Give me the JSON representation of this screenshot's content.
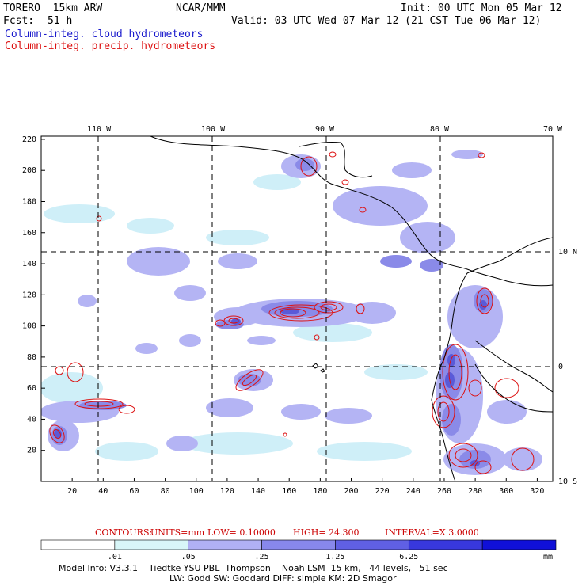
{
  "header": {
    "model": "TORERO  15km ARW",
    "center": "NCAR/MMM",
    "init": "Init: 00 UTC Mon 05 Mar 12",
    "fcst_label": "Fcst:",
    "fcst_value": "51 h",
    "valid": "Valid: 03 UTC Wed 07 Mar 12 (21 CST Tue 06 Mar 12)",
    "field_cloud": "Column-integ. cloud hydrometeors",
    "field_precip": "Column-integ. precip. hydrometeors"
  },
  "map": {
    "lon_labels": [
      "110 W",
      "100 W",
      "90 W",
      "80 W",
      "70 W"
    ],
    "lat_labels": [
      "10 N",
      "0",
      "10 S"
    ],
    "x_ticks": [
      "20",
      "40",
      "60",
      "80",
      "100",
      "120",
      "140",
      "160",
      "180",
      "200",
      "220",
      "240",
      "260",
      "280",
      "300",
      "320"
    ],
    "y_ticks": [
      "220",
      "200",
      "180",
      "160",
      "140",
      "120",
      "100",
      "80",
      "60",
      "40",
      "20"
    ],
    "colors": {
      "cloud_light": "#c8c8ff",
      "cloud_mid": "#9a9aee",
      "cloud_dark": "#6a6ae0",
      "precip_contour": "#dd1111",
      "coast": "#000000"
    }
  },
  "contours": {
    "label": "CONTOURS:",
    "units": "UNITS=mm",
    "low": "LOW= 0.10000",
    "high": "HIGH= 24.300",
    "interval": "INTERVAL=X 3.0000"
  },
  "colorbar": {
    "ticks": [
      ".01",
      ".05",
      ".25",
      "1.25",
      "6.25"
    ],
    "unit": "mm",
    "colors": [
      "#ffffff",
      "#d8f6f8",
      "#b0b0f4",
      "#8888ec",
      "#6060e4",
      "#3838dc",
      "#1010d8"
    ]
  },
  "model_info": {
    "line1": "Model Info: V3.3.1    Tiedtke YSU PBL  Thompson    Noah LSM  15 km,   44 levels,   51 sec",
    "line2": "LW: Godd SW: Goddard DIFF: simple KM: 2D Smagor"
  }
}
